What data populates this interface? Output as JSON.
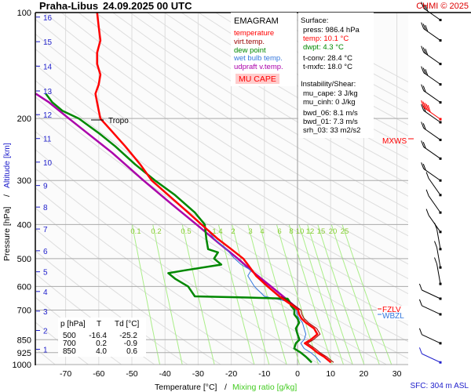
{
  "header": {
    "station": "Praha-Libus",
    "datetime": "24.09.2025 00 UTC",
    "credit": "CHMI © 2025"
  },
  "legend": {
    "title": "EMAGRAM",
    "items": [
      {
        "label": "temperature",
        "color": "#ff0000"
      },
      {
        "label": "virt.temp.",
        "color": "#990000"
      },
      {
        "label": "dew point",
        "color": "#008800"
      },
      {
        "label": "wet bulb temp.",
        "color": "#3377dd"
      },
      {
        "label": "udpraft v.temp.",
        "color": "#aa00aa"
      }
    ],
    "cape_label": "MU CAPE"
  },
  "surface": {
    "title": "Surface:",
    "press": "press: 986.4 hPa",
    "temp": "temp: 10.1 °C",
    "dwpt": "dwpt: 4.3 °C",
    "tconv": "t-conv: 28.4 °C",
    "tmxfc": "t-mxfc: 18.0 °C"
  },
  "instability": {
    "title": "Instability/Shear:",
    "mu_cape": "mu_cape: 3 J/kg",
    "mu_cinh": "mu_cinh: 0 J/kg",
    "bwd_06": "bwd_06: 8.1 m/s",
    "bwd_01": "bwd_01: 7.3 m/s",
    "srh_03": "srh_03: 33 m2/s2"
  },
  "levels_table": {
    "headers": [
      "p [hPa]",
      "T",
      "Td [°C]"
    ],
    "rows": [
      [
        "500",
        "-16.4",
        "-25.2"
      ],
      [
        "700",
        "0.2",
        "-0.9"
      ],
      [
        "850",
        "4.0",
        "0.6"
      ]
    ]
  },
  "annotations": {
    "tropo": "Tropo",
    "mxws": "MXWS",
    "fzlv": "FZLV",
    "wbzl": "WBZL",
    "sfc": "SFC: 304 m ASL"
  },
  "chart_data": {
    "type": "line",
    "title": "Praha-Libus 24.09.2025 00 UTC",
    "xlabel": "Temperature [°C]",
    "xlabel2": "Mixing ratio [g/kg]",
    "ylabel": "Pressure [hPa]",
    "ylabel2": "Altitude [km]",
    "xlim": [
      -79,
      33
    ],
    "ylim": [
      1000,
      100
    ],
    "x_ticks": [
      -70,
      -60,
      -50,
      -40,
      -30,
      -20,
      -10,
      0,
      10,
      20,
      30
    ],
    "x_tick_labels": [
      "-70",
      "-60",
      "-50",
      "-40",
      "-30",
      "-20",
      "-10",
      "0",
      "10",
      "20",
      "30"
    ],
    "p_ticks": [
      100,
      200,
      300,
      400,
      500,
      600,
      700,
      850,
      925,
      1000
    ],
    "p_tick_labels": [
      "100",
      "200",
      "300",
      "400",
      "500",
      "600",
      "700",
      "850",
      "925",
      "1000"
    ],
    "altitude_ticks_km": [
      {
        "label": "1",
        "p": 905
      },
      {
        "label": "2",
        "p": 800
      },
      {
        "label": "3",
        "p": 705
      },
      {
        "label": "4",
        "p": 620
      },
      {
        "label": "5",
        "p": 545
      },
      {
        "label": "6",
        "p": 475
      },
      {
        "label": "7",
        "p": 412
      },
      {
        "label": "8",
        "p": 357
      },
      {
        "label": "9",
        "p": 310
      },
      {
        "label": "10",
        "p": 266
      },
      {
        "label": "11",
        "p": 228
      },
      {
        "label": "12",
        "p": 195
      },
      {
        "label": "13",
        "p": 167
      },
      {
        "label": "14",
        "p": 142
      },
      {
        "label": "15",
        "p": 121
      },
      {
        "label": "16",
        "p": 103
      }
    ],
    "mixing_ratio_labels": [
      "0.1",
      "0.2",
      "0.5",
      "1.4",
      "2",
      "3",
      "4",
      "6",
      "8",
      "10",
      "12",
      "15",
      "20",
      "25"
    ],
    "mixing_ratio_values": [
      0.1,
      0.2,
      0.5,
      1.4,
      2,
      3,
      4,
      6,
      8,
      10,
      12,
      15,
      20,
      25
    ],
    "series": [
      {
        "name": "temperature",
        "color": "#ff0000",
        "p": [
          986,
          950,
          925,
          900,
          870,
          850,
          820,
          790,
          760,
          740,
          720,
          700,
          680,
          660,
          640,
          600,
          560,
          520,
          500,
          470,
          440,
          400,
          370,
          330,
          300,
          270,
          240,
          215,
          200,
          190,
          180,
          170,
          160,
          150,
          140,
          130,
          120,
          110,
          100
        ],
        "T": [
          10.1,
          8.0,
          6.0,
          4.5,
          2.2,
          4.0,
          6.0,
          5.0,
          2.5,
          1.2,
          0.5,
          0.2,
          -1.5,
          -3.5,
          -5.5,
          -9.0,
          -12.5,
          -15.0,
          -16.4,
          -20.0,
          -24.0,
          -29.0,
          -33.0,
          -39.0,
          -44.0,
          -47.5,
          -52.0,
          -56.5,
          -59.5,
          -60.0,
          -60.5,
          -61.0,
          -60.0,
          -59.5,
          -60.5,
          -60.5,
          -59.5,
          -60.0,
          -60.5
        ]
      },
      {
        "name": "virt.temp.",
        "color": "#990000",
        "p": [
          986,
          950,
          925,
          900,
          870,
          850,
          820,
          790,
          760,
          740,
          720,
          700,
          680,
          660,
          640
        ],
        "T": [
          10.9,
          8.8,
          6.8,
          5.3,
          3.0,
          4.8,
          6.8,
          5.8,
          3.3,
          2.0,
          1.3,
          1.0,
          -0.8,
          -2.8,
          -5.0
        ]
      },
      {
        "name": "dew point",
        "color": "#008800",
        "p": [
          986,
          950,
          925,
          900,
          870,
          850,
          820,
          790,
          760,
          740,
          720,
          700,
          680,
          660,
          650,
          645,
          640,
          600,
          570,
          550,
          540,
          520,
          500,
          480,
          470,
          440,
          400,
          370,
          330,
          300,
          270,
          240,
          220,
          200,
          190,
          180,
          170
        ],
        "T": [
          4.3,
          2.5,
          1.0,
          -1.0,
          -0.5,
          0.6,
          0.0,
          -0.5,
          0.5,
          0.0,
          -1.0,
          -0.9,
          -2.0,
          -2.5,
          -3.0,
          -15.0,
          -31.0,
          -33.0,
          -37.0,
          -39.0,
          -34.0,
          -23.0,
          -25.2,
          -24.0,
          -27.0,
          -27.5,
          -28.0,
          -31.0,
          -37.0,
          -43.0,
          -49.0,
          -55.0,
          -60.0,
          -66.0,
          -71.0,
          -74.0,
          -76.0
        ]
      },
      {
        "name": "wet bulb temp.",
        "color": "#3377dd",
        "p": [
          986,
          950,
          925,
          900,
          870,
          850,
          820,
          790,
          760,
          740,
          720,
          700,
          680,
          660,
          640,
          600,
          560,
          540,
          520,
          500,
          470,
          440,
          400
        ],
        "T": [
          7.0,
          5.5,
          4.0,
          2.0,
          1.0,
          2.0,
          2.5,
          2.0,
          1.5,
          0.5,
          -0.2,
          -0.3,
          -1.7,
          -3.5,
          -10.0,
          -13.0,
          -15.0,
          -14.0,
          -17.0,
          -19.0,
          -21.5,
          -25.0,
          -28.5
        ]
      },
      {
        "name": "udpraft v.temp.",
        "color": "#aa00aa",
        "p": [
          700,
          650,
          600,
          550,
          500,
          450,
          400,
          350,
          300,
          250,
          200,
          180,
          170
        ],
        "T": [
          0.5,
          -3.5,
          -8.0,
          -13.0,
          -18.0,
          -24.0,
          -30.5,
          -38.0,
          -46.5,
          -56.0,
          -69.0,
          -75.0,
          -79.0
        ]
      }
    ],
    "tropopause_p": 200,
    "wind_barbs": {
      "levels_p": [
        105,
        120,
        140,
        160,
        180,
        205,
        230,
        260,
        300,
        330,
        370,
        420,
        470,
        530,
        590,
        650,
        720,
        870,
        986
      ],
      "mxws_p": 205
    },
    "legend_placement": "top-right",
    "grid": true
  }
}
